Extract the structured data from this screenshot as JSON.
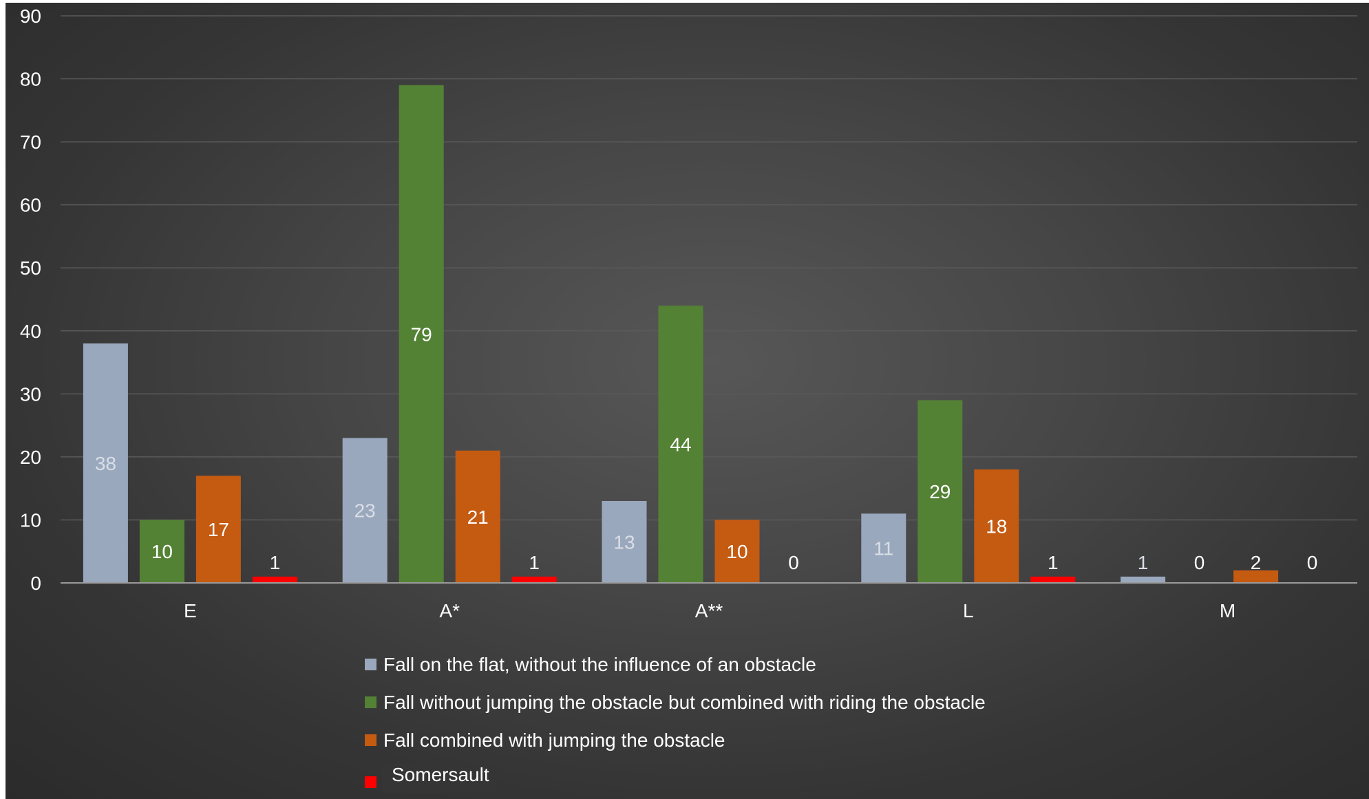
{
  "colors": {
    "light_blue": "#9aa8be",
    "green": "#548235",
    "orange": "#c55a11",
    "red": "#ff0000",
    "text": "#ffffff",
    "gridline": "#5a5a5a",
    "axis_line": "#9a9a9a",
    "label_on_light_blue": "#d9dee6"
  },
  "chart_data": {
    "type": "bar",
    "categories": [
      "E",
      "A*",
      "A**",
      "L",
      "M"
    ],
    "series": [
      {
        "name": "Fall on the flat, without the influence of an obstacle",
        "color": "#9aa8be",
        "values": [
          38,
          23,
          13,
          11,
          1
        ]
      },
      {
        "name": "Fall without jumping the obstacle but combined with riding the obstacle",
        "color": "#548235",
        "values": [
          10,
          79,
          44,
          29,
          0
        ]
      },
      {
        "name": "Fall combined with jumping the obstacle",
        "color": "#c55a11",
        "values": [
          17,
          21,
          10,
          18,
          2
        ]
      },
      {
        "name": "Somersault",
        "color": "#ff0000",
        "values": [
          1,
          1,
          0,
          1,
          0
        ]
      }
    ],
    "ylim": [
      0,
      90
    ],
    "yticks": [
      0,
      10,
      20,
      30,
      40,
      50,
      60,
      70,
      80,
      90
    ],
    "ytick_labels": [
      "0",
      "10",
      "20",
      "30",
      "40",
      "50",
      "60",
      "70",
      "80",
      "90"
    ],
    "grid": true,
    "data_labels": true,
    "legend_position": "bottom"
  }
}
